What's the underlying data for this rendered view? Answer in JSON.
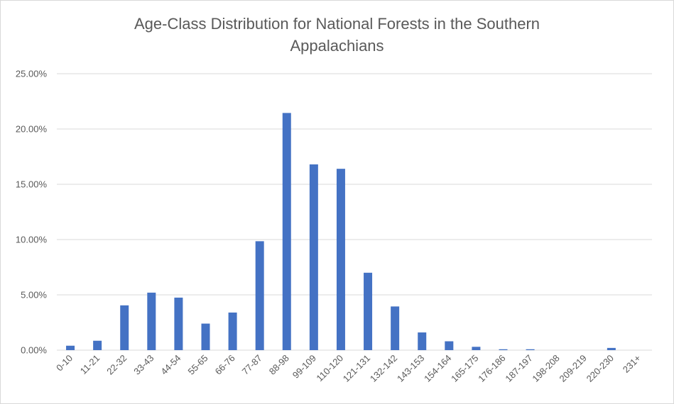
{
  "chart_data": {
    "type": "bar",
    "title_lines": [
      "Age-Class Distribution for National Forests in the Southern",
      "Appalachians"
    ],
    "xlabel": "",
    "ylabel": "",
    "ylim": [
      0,
      25
    ],
    "yticks": [
      "0.00%",
      "5.00%",
      "10.00%",
      "15.00%",
      "20.00%",
      "25.00%"
    ],
    "ytick_values": [
      0,
      5,
      10,
      15,
      20,
      25
    ],
    "grid": true,
    "legend": "none",
    "bar_color": "#4472c4",
    "grid_color": "#d9d9d9",
    "categories": [
      "0-10",
      "11-21",
      "22-32",
      "33-43",
      "44-54",
      "55-65",
      "66-76",
      "77-87",
      "88-98",
      "99-109",
      "110-120",
      "121-131",
      "132-142",
      "143-153",
      "154-164",
      "165-175",
      "176-186",
      "187-197",
      "198-208",
      "209-219",
      "220-230",
      "231+"
    ],
    "values": [
      0.4,
      0.85,
      4.05,
      5.2,
      4.75,
      2.4,
      3.4,
      9.85,
      21.45,
      16.8,
      16.4,
      7.0,
      3.95,
      1.6,
      0.8,
      0.3,
      0.08,
      0.08,
      0.0,
      0.0,
      0.2,
      0.0
    ]
  }
}
